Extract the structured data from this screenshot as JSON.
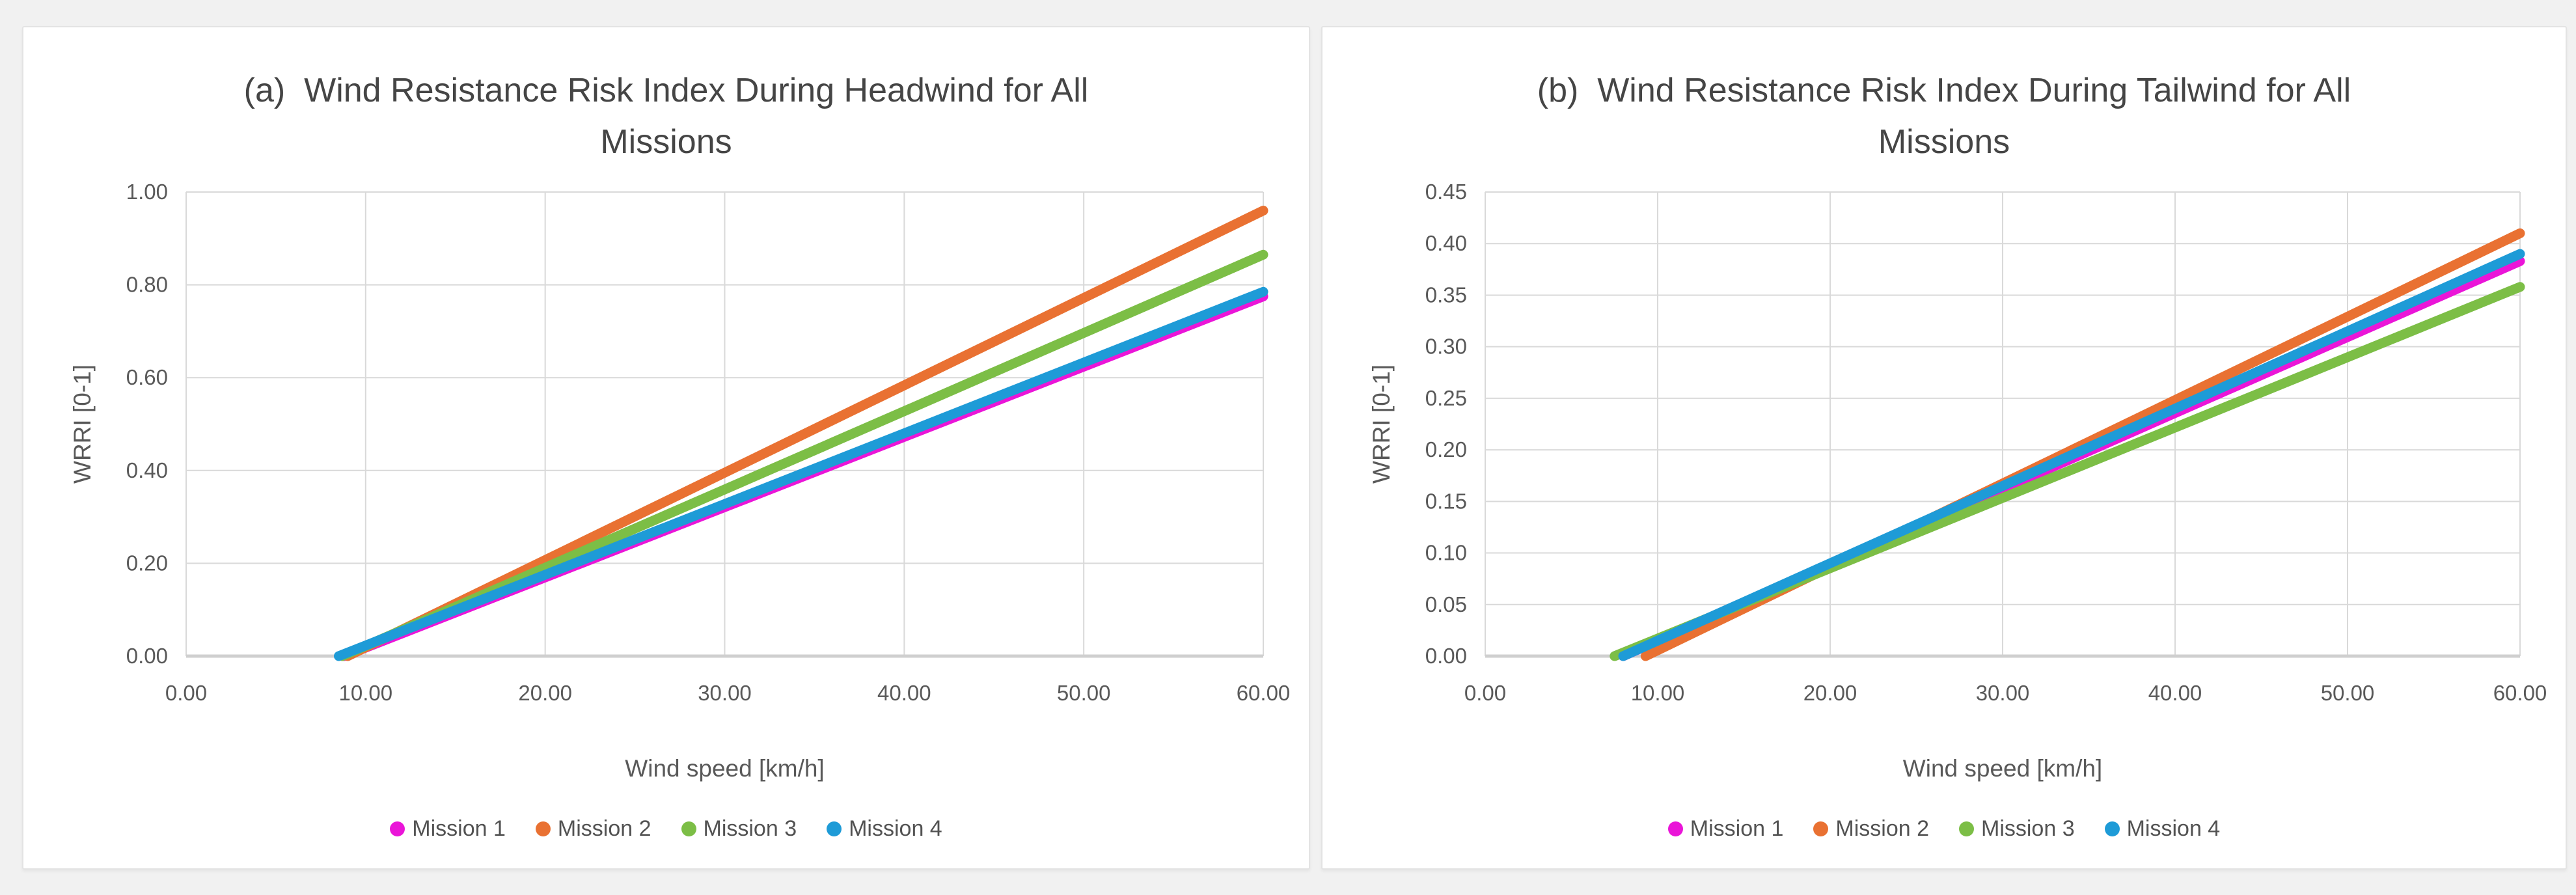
{
  "page": {
    "background": "#f1f1f1",
    "panel_background": "#ffffff",
    "panel_border": "#e3e3e3",
    "grid_color": "#d9d9d9",
    "axis_line_color": "#cfcfcf",
    "tick_text_color": "#595959",
    "title_text_color": "#454545"
  },
  "chart_data": [
    {
      "type": "line",
      "title": "(a)  Wind Resistance Risk Index During Headwind for All Missions",
      "title_lines": [
        "(a)  Wind Resistance Risk Index During Headwind for All",
        "Missions"
      ],
      "xlabel": "Wind speed [km/h]",
      "ylabel": "WRRI [0-1]",
      "xlim": [
        0,
        60
      ],
      "ylim": [
        0,
        1.0
      ],
      "x_tick_labels": [
        "0.00",
        "10.00",
        "20.00",
        "30.00",
        "40.00",
        "50.00",
        "60.00"
      ],
      "y_tick_labels": [
        "0.00",
        "0.20",
        "0.40",
        "0.60",
        "0.80",
        "1.00"
      ],
      "grid": true,
      "legend_position": "bottom",
      "series": [
        {
          "name": "Mission 1",
          "color": "#EA15D8",
          "x": [
            8.8,
            60
          ],
          "y": [
            0,
            0.775
          ]
        },
        {
          "name": "Mission 2",
          "color": "#E97132",
          "x": [
            9.0,
            60
          ],
          "y": [
            0,
            0.96
          ]
        },
        {
          "name": "Mission 3",
          "color": "#7CBE46",
          "x": [
            8.7,
            60
          ],
          "y": [
            0,
            0.865
          ]
        },
        {
          "name": "Mission 4",
          "color": "#1E9BD7",
          "x": [
            8.5,
            60
          ],
          "y": [
            0,
            0.785
          ]
        }
      ]
    },
    {
      "type": "line",
      "title": "(b)  Wind Resistance Risk Index During Tailwind for All Missions",
      "title_lines": [
        "(b)  Wind Resistance Risk Index During Tailwind for All",
        "Missions"
      ],
      "xlabel": "Wind speed [km/h]",
      "ylabel": "WRRI [0-1]",
      "xlim": [
        0,
        60
      ],
      "ylim": [
        0,
        0.45
      ],
      "x_tick_labels": [
        "0.00",
        "10.00",
        "20.00",
        "30.00",
        "40.00",
        "50.00",
        "60.00"
      ],
      "y_tick_labels": [
        "0.00",
        "0.05",
        "0.10",
        "0.15",
        "0.20",
        "0.25",
        "0.30",
        "0.35",
        "0.40",
        "0.45"
      ],
      "grid": true,
      "legend_position": "bottom",
      "series": [
        {
          "name": "Mission 1",
          "color": "#EA15D8",
          "x": [
            8.0,
            60
          ],
          "y": [
            0,
            0.383
          ]
        },
        {
          "name": "Mission 2",
          "color": "#E97132",
          "x": [
            9.3,
            60
          ],
          "y": [
            0,
            0.41
          ]
        },
        {
          "name": "Mission 3",
          "color": "#7CBE46",
          "x": [
            7.5,
            60
          ],
          "y": [
            0,
            0.358
          ]
        },
        {
          "name": "Mission 4",
          "color": "#1E9BD7",
          "x": [
            8.0,
            60
          ],
          "y": [
            0,
            0.39
          ]
        }
      ]
    }
  ]
}
